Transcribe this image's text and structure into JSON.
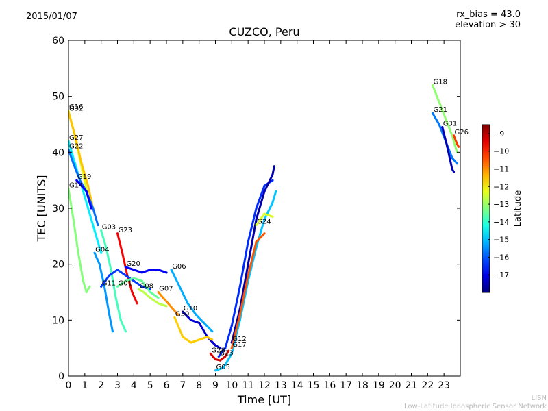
{
  "header": {
    "date": "2015/01/07",
    "rx_bias": "rx_bias = 43.0",
    "elevation": "elevation > 30"
  },
  "footer": {
    "org_short": "LISN",
    "org_long": "Low-Latitude Ionospheric Sensor Network"
  },
  "chart_data": {
    "type": "scatter",
    "title": "CUZCO, Peru",
    "xlabel": "Time [UT]",
    "ylabel": "TEC [UNITS]",
    "xlim": [
      0,
      24
    ],
    "ylim": [
      0,
      60
    ],
    "xticks": [
      0,
      1,
      2,
      3,
      4,
      5,
      6,
      7,
      8,
      9,
      10,
      11,
      12,
      13,
      14,
      15,
      16,
      17,
      18,
      19,
      20,
      21,
      22,
      23
    ],
    "yticks": [
      0,
      10,
      20,
      30,
      40,
      50,
      60
    ],
    "grid": false,
    "colorbar": {
      "label": "Latitude",
      "min": -18,
      "max": -8.5,
      "ticks": [
        -9,
        -10,
        -11,
        -12,
        -13,
        -14,
        -15,
        -16,
        -17
      ],
      "colors": [
        "#00007f",
        "#0000ff",
        "#007fff",
        "#00ffff",
        "#7fff7f",
        "#ffff00",
        "#ff7f00",
        "#ff0000",
        "#7f0000"
      ]
    },
    "series": [
      {
        "name": "G16",
        "lat": -12.3,
        "points": [
          [
            0.0,
            47.5
          ],
          [
            0.3,
            44
          ],
          [
            0.6,
            40
          ],
          [
            0.9,
            36
          ],
          [
            1.2,
            32
          ]
        ]
      },
      {
        "name": "G32",
        "lat": -11.5,
        "points": [
          [
            0.0,
            47.2
          ],
          [
            0.4,
            43
          ],
          [
            0.8,
            38
          ],
          [
            1.2,
            34
          ],
          [
            1.5,
            30
          ]
        ]
      },
      {
        "name": "G27",
        "lat": -14.6,
        "points": [
          [
            0.0,
            42.0
          ],
          [
            0.4,
            38
          ],
          [
            0.8,
            34
          ],
          [
            1.2,
            30
          ],
          [
            1.6,
            26
          ],
          [
            2.0,
            22
          ]
        ]
      },
      {
        "name": "G22",
        "lat": -15.8,
        "points": [
          [
            0.0,
            40.5
          ],
          [
            0.3,
            38
          ],
          [
            0.7,
            35
          ],
          [
            1.1,
            33
          ],
          [
            1.5,
            30
          ],
          [
            1.8,
            27
          ]
        ]
      },
      {
        "name": "G19",
        "lat": -16.8,
        "points": [
          [
            0.5,
            35.0
          ],
          [
            0.8,
            34
          ],
          [
            1.1,
            33
          ],
          [
            1.4,
            30
          ]
        ]
      },
      {
        "name": "G14",
        "lat": -13.2,
        "points": [
          [
            0.0,
            33.5
          ],
          [
            0.3,
            28
          ],
          [
            0.6,
            22
          ],
          [
            0.9,
            17
          ],
          [
            1.1,
            15
          ],
          [
            1.3,
            16
          ]
        ]
      },
      {
        "name": "G03",
        "lat": -13.8,
        "points": [
          [
            2.0,
            26.0
          ],
          [
            2.3,
            23
          ],
          [
            2.6,
            19
          ],
          [
            2.9,
            14
          ],
          [
            3.2,
            10
          ],
          [
            3.5,
            8
          ]
        ]
      },
      {
        "name": "G23",
        "lat": -9.6,
        "points": [
          [
            3.0,
            25.5
          ],
          [
            3.3,
            22
          ],
          [
            3.6,
            18
          ],
          [
            3.9,
            15
          ],
          [
            4.2,
            13
          ]
        ]
      },
      {
        "name": "G04",
        "lat": -15.4,
        "points": [
          [
            1.6,
            22.0
          ],
          [
            1.9,
            20
          ],
          [
            2.2,
            16
          ],
          [
            2.5,
            11
          ],
          [
            2.7,
            8
          ]
        ]
      },
      {
        "name": "G11",
        "lat": -16.3,
        "points": [
          [
            2.0,
            16.0
          ],
          [
            2.5,
            18
          ],
          [
            3.0,
            19
          ],
          [
            3.5,
            18
          ],
          [
            4.0,
            17
          ],
          [
            4.5,
            16
          ],
          [
            5.0,
            15.5
          ]
        ]
      },
      {
        "name": "G01",
        "lat": -13.5,
        "points": [
          [
            3.0,
            16.0
          ],
          [
            3.5,
            17
          ],
          [
            4.0,
            17.5
          ],
          [
            4.5,
            17
          ],
          [
            5.0,
            15
          ],
          [
            5.5,
            14
          ]
        ]
      },
      {
        "name": "G08",
        "lat": -12.7,
        "points": [
          [
            4.3,
            15.5
          ],
          [
            4.6,
            15
          ],
          [
            5.0,
            14
          ],
          [
            5.5,
            13
          ],
          [
            6.0,
            12.5
          ]
        ]
      },
      {
        "name": "G20",
        "lat": -16.9,
        "points": [
          [
            3.5,
            19.5
          ],
          [
            4.0,
            19
          ],
          [
            4.5,
            18.5
          ],
          [
            5.0,
            19
          ],
          [
            5.5,
            19
          ],
          [
            6.0,
            18.5
          ]
        ]
      },
      {
        "name": "G07",
        "lat": -11.0,
        "points": [
          [
            5.5,
            15.0
          ],
          [
            5.8,
            14
          ],
          [
            6.1,
            13
          ],
          [
            6.4,
            12
          ],
          [
            6.7,
            11
          ]
        ]
      },
      {
        "name": "G06",
        "lat": -15.2,
        "points": [
          [
            6.3,
            19.0
          ],
          [
            6.8,
            16
          ],
          [
            7.3,
            13
          ],
          [
            7.8,
            11
          ],
          [
            8.3,
            9.5
          ],
          [
            8.8,
            8
          ]
        ]
      },
      {
        "name": "G10",
        "lat": -17.2,
        "points": [
          [
            7.0,
            11.5
          ],
          [
            7.5,
            10
          ],
          [
            8.0,
            9.5
          ],
          [
            8.5,
            7
          ],
          [
            9.0,
            5.5
          ],
          [
            9.3,
            5
          ]
        ]
      },
      {
        "name": "G30",
        "lat": -11.6,
        "points": [
          [
            6.5,
            10.5
          ],
          [
            7.0,
            7
          ],
          [
            7.5,
            6
          ],
          [
            8.0,
            6.5
          ],
          [
            8.5,
            7
          ],
          [
            8.8,
            6.5
          ]
        ]
      },
      {
        "name": "G05",
        "lat": -15.0,
        "points": [
          [
            9.0,
            1.0
          ],
          [
            9.5,
            1.5
          ],
          [
            10.0,
            4
          ],
          [
            10.5,
            10
          ],
          [
            11.0,
            17
          ],
          [
            11.5,
            23
          ],
          [
            12.0,
            28
          ],
          [
            12.5,
            31
          ],
          [
            12.7,
            33
          ]
        ]
      },
      {
        "name": "G28",
        "lat": -9.3,
        "points": [
          [
            8.7,
            4.0
          ],
          [
            9.0,
            3.0
          ],
          [
            9.3,
            2.8
          ],
          [
            9.6,
            3.5
          ],
          [
            9.8,
            4.5
          ]
        ]
      },
      {
        "name": "G13",
        "lat": -16.4,
        "points": [
          [
            9.2,
            3.5
          ],
          [
            9.6,
            5
          ],
          [
            10.0,
            9
          ],
          [
            10.5,
            16
          ],
          [
            11.0,
            24
          ],
          [
            11.5,
            30
          ],
          [
            12.0,
            34
          ],
          [
            12.5,
            35
          ]
        ]
      },
      {
        "name": "G12",
        "lat": -17.6,
        "points": [
          [
            10.0,
            6.0
          ],
          [
            10.5,
            12
          ],
          [
            11.0,
            20
          ],
          [
            11.5,
            28
          ],
          [
            12.0,
            33
          ],
          [
            12.5,
            36
          ],
          [
            12.6,
            37.5
          ]
        ]
      },
      {
        "name": "G17",
        "lat": -10.5,
        "points": [
          [
            10.0,
            5.0
          ],
          [
            10.5,
            11
          ],
          [
            11.0,
            18
          ],
          [
            11.5,
            24
          ],
          [
            12.0,
            25.5
          ]
        ]
      },
      {
        "name": "G24",
        "lat": -12.4,
        "points": [
          [
            11.5,
            27.0
          ],
          [
            12.0,
            29
          ],
          [
            12.5,
            28.5
          ]
        ]
      },
      {
        "name": "G18",
        "lat": -13.1,
        "points": [
          [
            22.3,
            52.0
          ],
          [
            22.7,
            49
          ],
          [
            23.1,
            46
          ],
          [
            23.5,
            43
          ],
          [
            23.8,
            40
          ]
        ]
      },
      {
        "name": "G21",
        "lat": -15.7,
        "points": [
          [
            22.3,
            47.0
          ],
          [
            22.7,
            45
          ],
          [
            23.1,
            42
          ],
          [
            23.5,
            39
          ],
          [
            23.8,
            38
          ]
        ]
      },
      {
        "name": "G31",
        "lat": -17.5,
        "points": [
          [
            22.9,
            44.5
          ],
          [
            23.2,
            41
          ],
          [
            23.5,
            37
          ],
          [
            23.6,
            36.5
          ]
        ]
      },
      {
        "name": "G26",
        "lat": -10.2,
        "points": [
          [
            23.6,
            43.0
          ],
          [
            23.8,
            41.5
          ],
          [
            23.9,
            41.0
          ]
        ]
      }
    ]
  }
}
